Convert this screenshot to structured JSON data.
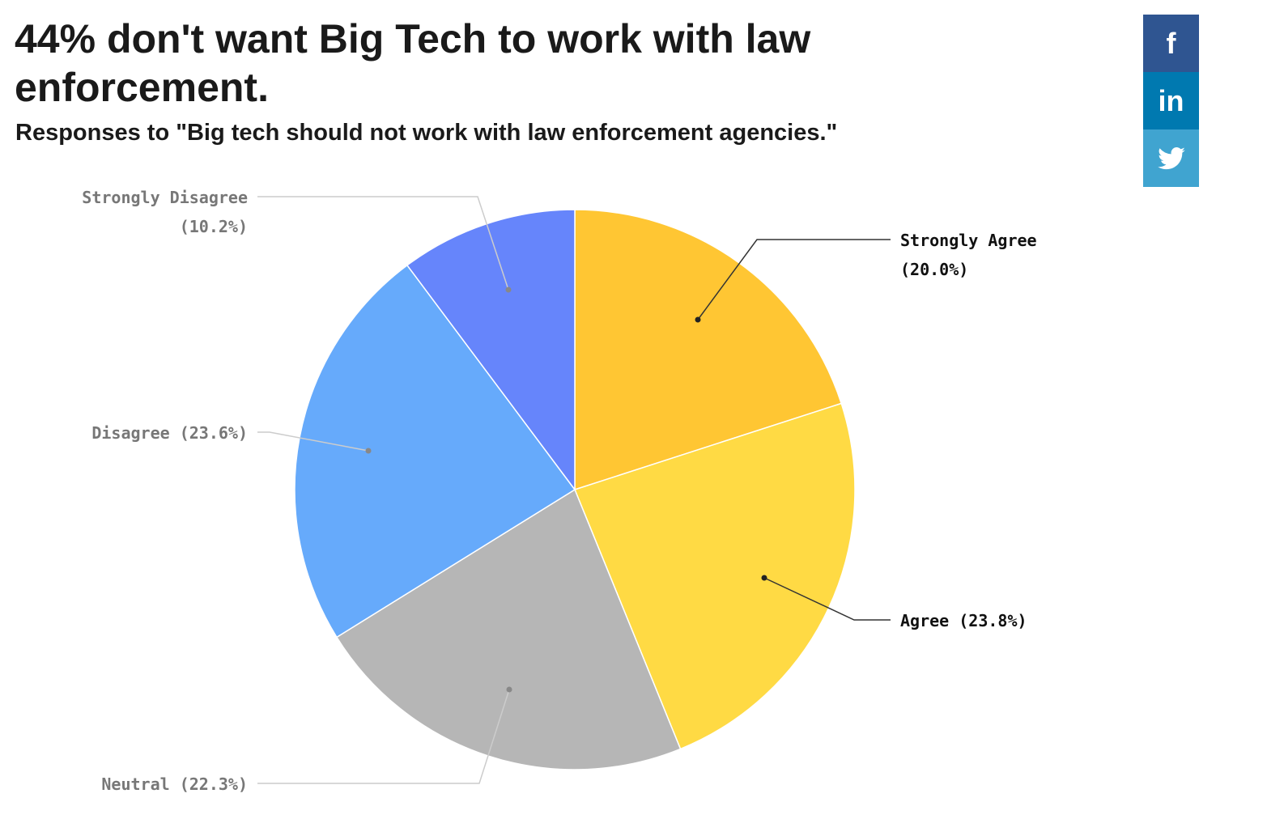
{
  "title": "44% don't want Big Tech to work with law enforcement.",
  "subtitle": "Responses to \"Big tech should not work with law enforcement agencies.\"",
  "social": {
    "facebook": "f",
    "linkedin": "in",
    "twitter": "twitter-bird-icon",
    "colors": {
      "facebook": "#2F5591",
      "linkedin": "#0079B0",
      "twitter": "#40A4D0"
    }
  },
  "chart_data": {
    "type": "pie",
    "title": "44% don't want Big Tech to work with law enforcement.",
    "slices": [
      {
        "label": "Strongly Agree",
        "value": 20.0,
        "pct_label": "(20.0%)",
        "color": "#FFC633"
      },
      {
        "label": "Agree",
        "value": 23.8,
        "pct_label": "(23.8%)",
        "color": "#FFDA44"
      },
      {
        "label": "Neutral",
        "value": 22.3,
        "pct_label": "(22.3%)",
        "color": "#B6B6B6"
      },
      {
        "label": "Disagree",
        "value": 23.6,
        "pct_label": "(23.6%)",
        "color": "#66AAFB"
      },
      {
        "label": "Strongly Disagree",
        "value": 10.2,
        "pct_label": "(10.2%)",
        "color": "#6685FB"
      }
    ]
  }
}
